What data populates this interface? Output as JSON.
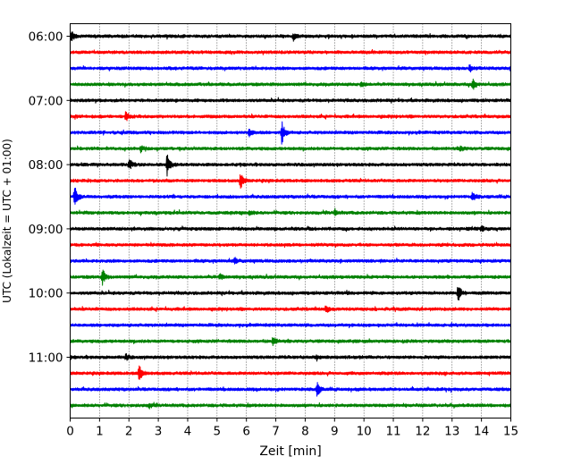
{
  "chart_data": {
    "type": "line",
    "title": "",
    "xlabel": "Zeit  [min]",
    "ylabel": "UTC (Lokalzeit = UTC + 01:00)",
    "xlim": [
      0,
      15
    ],
    "x_ticks": [
      0,
      1,
      2,
      3,
      4,
      5,
      6,
      7,
      8,
      9,
      10,
      11,
      12,
      13,
      14,
      15
    ],
    "x_tick_labels": [
      "0",
      "1",
      "2",
      "3",
      "4",
      "5",
      "6",
      "7",
      "8",
      "9",
      "10",
      "11",
      "12",
      "13",
      "14",
      "15"
    ],
    "y_tick_labels": [
      "06:00",
      "07:00",
      "08:00",
      "09:00",
      "10:00",
      "11:00"
    ],
    "y_ticks_trace_index": [
      0,
      4,
      8,
      12,
      16,
      20
    ],
    "grid": {
      "x": true,
      "y": false,
      "style": "dotted"
    },
    "trace_colors": [
      "#000000",
      "#ff0000",
      "#0000ff",
      "#008000"
    ],
    "trace_interval_minutes": 15,
    "traces": [
      {
        "start": "06:00",
        "color": "#000000",
        "events": [
          {
            "x": 0.05,
            "amp": 1.0
          },
          {
            "x": 7.6,
            "amp": 0.6
          }
        ]
      },
      {
        "start": "06:15",
        "color": "#ff0000",
        "events": []
      },
      {
        "start": "06:30",
        "color": "#0000ff",
        "events": [
          {
            "x": 13.6,
            "amp": 0.6
          }
        ]
      },
      {
        "start": "06:45",
        "color": "#008000",
        "events": [
          {
            "x": 9.9,
            "amp": 0.6
          },
          {
            "x": 13.7,
            "amp": 1.3
          }
        ]
      },
      {
        "start": "07:00",
        "color": "#000000",
        "events": []
      },
      {
        "start": "07:15",
        "color": "#ff0000",
        "events": [
          {
            "x": 1.9,
            "amp": 1.0
          }
        ]
      },
      {
        "start": "07:30",
        "color": "#0000ff",
        "events": [
          {
            "x": 6.1,
            "amp": 0.8
          },
          {
            "x": 7.2,
            "amp": 2.2
          }
        ]
      },
      {
        "start": "07:45",
        "color": "#008000",
        "events": [
          {
            "x": 2.4,
            "amp": 0.6
          },
          {
            "x": 13.3,
            "amp": 0.6
          }
        ]
      },
      {
        "start": "08:00",
        "color": "#000000",
        "events": [
          {
            "x": 2.0,
            "amp": 1.1
          },
          {
            "x": 3.3,
            "amp": 2.0
          }
        ]
      },
      {
        "start": "08:15",
        "color": "#ff0000",
        "events": [
          {
            "x": 5.8,
            "amp": 1.5
          }
        ]
      },
      {
        "start": "08:30",
        "color": "#0000ff",
        "events": [
          {
            "x": 0.15,
            "amp": 2.0
          },
          {
            "x": 13.7,
            "amp": 0.9
          }
        ]
      },
      {
        "start": "08:45",
        "color": "#008000",
        "events": [
          {
            "x": 6.1,
            "amp": 0.5
          },
          {
            "x": 9.0,
            "amp": 0.6
          }
        ]
      },
      {
        "start": "09:00",
        "color": "#000000",
        "events": [
          {
            "x": 14.0,
            "amp": 0.5
          }
        ]
      },
      {
        "start": "09:15",
        "color": "#ff0000",
        "events": []
      },
      {
        "start": "09:30",
        "color": "#0000ff",
        "events": [
          {
            "x": 5.6,
            "amp": 0.5
          }
        ]
      },
      {
        "start": "09:45",
        "color": "#008000",
        "events": [
          {
            "x": 1.1,
            "amp": 1.5
          },
          {
            "x": 5.1,
            "amp": 0.5
          }
        ]
      },
      {
        "start": "10:00",
        "color": "#000000",
        "events": [
          {
            "x": 13.2,
            "amp": 1.9
          }
        ]
      },
      {
        "start": "10:15",
        "color": "#ff0000",
        "events": [
          {
            "x": 8.7,
            "amp": 0.7
          }
        ]
      },
      {
        "start": "10:30",
        "color": "#0000ff",
        "events": []
      },
      {
        "start": "10:45",
        "color": "#008000",
        "events": [
          {
            "x": 6.9,
            "amp": 0.8
          }
        ]
      },
      {
        "start": "11:00",
        "color": "#000000",
        "events": [
          {
            "x": 1.9,
            "amp": 0.5
          },
          {
            "x": 8.4,
            "amp": 0.5
          }
        ]
      },
      {
        "start": "11:15",
        "color": "#ff0000",
        "events": [
          {
            "x": 2.35,
            "amp": 1.9
          }
        ]
      },
      {
        "start": "11:30",
        "color": "#0000ff",
        "events": [
          {
            "x": 8.4,
            "amp": 1.4
          }
        ]
      },
      {
        "start": "11:45",
        "color": "#008000",
        "events": [
          {
            "x": 2.7,
            "amp": 0.5
          }
        ]
      }
    ]
  }
}
